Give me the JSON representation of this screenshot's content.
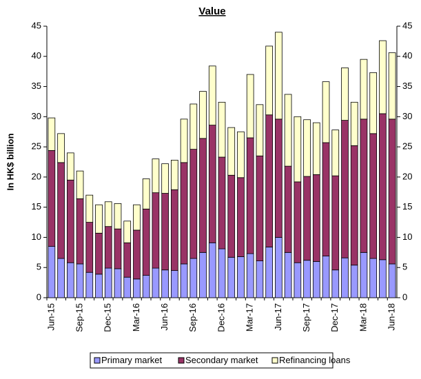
{
  "chart_data": {
    "type": "stacked-bar",
    "title": "Value",
    "y_label": "In HK$ billion",
    "categories": [
      "Jun-15",
      null,
      null,
      "Sep-15",
      null,
      null,
      "Dec-15",
      null,
      null,
      "Mar-16",
      null,
      null,
      "Jun-16",
      null,
      null,
      "Sep-16",
      null,
      null,
      "Dec-16",
      null,
      null,
      "Mar-17",
      null,
      null,
      "Jun-17",
      null,
      null,
      "Sep-17",
      null,
      null,
      "Dec-17",
      null,
      null,
      "Mar-18",
      null,
      null,
      "Jun-18"
    ],
    "series": [
      {
        "name": "Primary market",
        "color": "#9999ff",
        "values": [
          8.5,
          6.5,
          5.8,
          5.6,
          4.2,
          3.9,
          4.9,
          4.8,
          3.4,
          3.1,
          3.7,
          4.9,
          4.6,
          4.5,
          5.6,
          6.5,
          7.5,
          9.1,
          8.1,
          6.7,
          6.8,
          7.3,
          6.1,
          8.4,
          10,
          7.5,
          5.8,
          6.2,
          6,
          6.9,
          4.6,
          6.6,
          5.4,
          7.5,
          6.5,
          6.3,
          5.6
        ]
      },
      {
        "name": "Secondary market",
        "color": "#993366",
        "values": [
          15.9,
          15.9,
          13.7,
          10.8,
          8.3,
          6.8,
          6.9,
          6.6,
          5.7,
          8.1,
          11,
          12.5,
          12.7,
          13.4,
          16.8,
          18.1,
          18.9,
          19.5,
          15.2,
          13.6,
          13.1,
          19.2,
          17.4,
          21.9,
          19.6,
          14.3,
          13.4,
          13.9,
          14.4,
          18.8,
          15.6,
          22.8,
          19.8,
          22.1,
          20.7,
          24.2,
          24
        ]
      },
      {
        "name": "Refinancing loans",
        "color": "#ffffcc",
        "values": [
          5.4,
          4.8,
          4.5,
          4.6,
          4.5,
          4.7,
          4.1,
          4.2,
          3.6,
          4.2,
          5,
          5.6,
          4.9,
          4.9,
          7.2,
          7.5,
          7.8,
          9.8,
          9.1,
          7.9,
          7.6,
          10.5,
          8.5,
          11.4,
          14.4,
          11.9,
          10.8,
          9.4,
          8.6,
          10.1,
          7.6,
          8.7,
          7.2,
          9.9,
          10.1,
          12.1,
          11
        ]
      }
    ],
    "ylim": [
      0,
      45
    ],
    "yticks": [
      0,
      5,
      10,
      15,
      20,
      25,
      30,
      35,
      40,
      45
    ],
    "y2lim": [
      0,
      45
    ],
    "y2ticks": [
      0,
      5,
      10,
      15,
      20,
      25,
      30,
      35,
      40,
      45
    ],
    "legend": "bottom"
  }
}
